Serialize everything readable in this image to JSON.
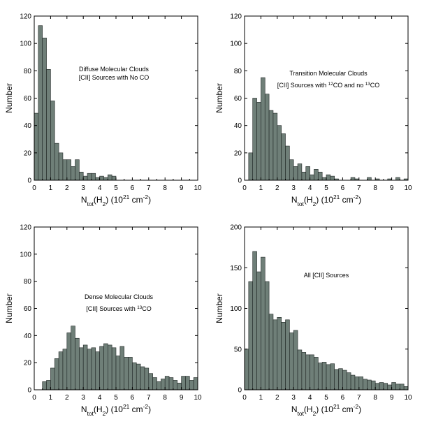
{
  "chart_data": [
    {
      "type": "bar",
      "annotation_lines": [
        [
          {
            "t": "Diffuse Molecular Clouds"
          }
        ],
        [
          {
            "t": "[CII] Sources with No CO"
          }
        ]
      ],
      "ylabel": "Number",
      "xlabel_parts": [
        {
          "t": "N"
        },
        {
          "t": "tot",
          "s": "sub"
        },
        {
          "t": "(H"
        },
        {
          "t": "2",
          "s": "sub"
        },
        {
          "t": ") (10"
        },
        {
          "t": "21",
          "s": "sup"
        },
        {
          "t": " cm"
        },
        {
          "t": "-2",
          "s": "sup"
        },
        {
          "t": ")"
        }
      ],
      "xlim": [
        0,
        10
      ],
      "ylim": [
        0,
        120
      ],
      "xticks": [
        0,
        1,
        2,
        3,
        4,
        5,
        6,
        7,
        8,
        9,
        10
      ],
      "yticks": [
        0,
        20,
        40,
        60,
        80,
        100,
        120
      ],
      "bin_width": 0.25,
      "values": [
        49,
        113,
        104,
        81,
        58,
        27,
        20,
        15,
        15,
        10,
        15,
        6,
        3,
        5,
        5,
        2,
        3,
        2,
        4,
        3,
        0,
        0,
        0,
        0,
        0,
        0,
        0,
        0,
        0,
        0,
        0,
        0,
        0,
        0,
        0,
        0,
        0,
        0,
        0,
        0
      ]
    },
    {
      "type": "bar",
      "annotation_lines": [
        [
          {
            "t": "Transition Molecular Clouds"
          }
        ],
        [
          {
            "t": "[CII] Sources with "
          },
          {
            "t": "12",
            "s": "sup"
          },
          {
            "t": "CO and no "
          },
          {
            "t": "13",
            "s": "sup"
          },
          {
            "t": "CO"
          }
        ]
      ],
      "ylabel": "Number",
      "xlabel_parts": [
        {
          "t": "N"
        },
        {
          "t": "tot",
          "s": "sub"
        },
        {
          "t": "(H"
        },
        {
          "t": "2",
          "s": "sub"
        },
        {
          "t": ") (10"
        },
        {
          "t": "21",
          "s": "sup"
        },
        {
          "t": " cm"
        },
        {
          "t": "-2",
          "s": "sup"
        },
        {
          "t": ")"
        }
      ],
      "xlim": [
        0,
        10
      ],
      "ylim": [
        0,
        120
      ],
      "xticks": [
        0,
        1,
        2,
        3,
        4,
        5,
        6,
        7,
        8,
        9,
        10
      ],
      "yticks": [
        0,
        20,
        40,
        60,
        80,
        100,
        120
      ],
      "bin_width": 0.25,
      "values": [
        0,
        20,
        60,
        57,
        75,
        63,
        51,
        49,
        40,
        34,
        25,
        15,
        10,
        12,
        6,
        10,
        4,
        8,
        6,
        2,
        4,
        3,
        1,
        0,
        0,
        0,
        2,
        1,
        0,
        0,
        2,
        0,
        1,
        0,
        0,
        1,
        0,
        2,
        0,
        1
      ]
    },
    {
      "type": "bar",
      "annotation_lines": [
        [
          {
            "t": "Dense Molecular Clouds"
          }
        ],
        [
          {
            "t": "[CII] Sources with "
          },
          {
            "t": "13",
            "s": "sup"
          },
          {
            "t": "CO"
          }
        ]
      ],
      "ylabel": "Number",
      "xlabel_parts": [
        {
          "t": "N"
        },
        {
          "t": "tot",
          "s": "sub"
        },
        {
          "t": "(H"
        },
        {
          "t": "2",
          "s": "sub"
        },
        {
          "t": ") (10"
        },
        {
          "t": "21",
          "s": "sup"
        },
        {
          "t": " cm"
        },
        {
          "t": "-2",
          "s": "sup"
        },
        {
          "t": ")"
        }
      ],
      "xlim": [
        0,
        10
      ],
      "ylim": [
        0,
        120
      ],
      "xticks": [
        0,
        1,
        2,
        3,
        4,
        5,
        6,
        7,
        8,
        9,
        10
      ],
      "yticks": [
        0,
        20,
        40,
        60,
        80,
        100,
        120
      ],
      "bin_width": 0.25,
      "values": [
        0,
        0,
        6,
        7,
        16,
        23,
        28,
        30,
        42,
        47,
        38,
        31,
        33,
        30,
        31,
        28,
        32,
        34,
        33,
        31,
        25,
        32,
        24,
        24,
        20,
        19,
        17,
        16,
        12,
        9,
        6,
        8,
        10,
        9,
        7,
        5,
        10,
        10,
        7,
        9
      ]
    },
    {
      "type": "bar",
      "annotation_lines": [
        [
          {
            "t": "All [CII] Sources"
          }
        ]
      ],
      "ylabel": "Number",
      "xlabel_parts": [
        {
          "t": "N"
        },
        {
          "t": "tot",
          "s": "sub"
        },
        {
          "t": "(H"
        },
        {
          "t": "2",
          "s": "sub"
        },
        {
          "t": ") (10"
        },
        {
          "t": "21",
          "s": "sup"
        },
        {
          "t": " cm"
        },
        {
          "t": "-2",
          "s": "sup"
        },
        {
          "t": ")"
        }
      ],
      "xlim": [
        0,
        10
      ],
      "ylim": [
        0,
        200
      ],
      "xticks": [
        0,
        1,
        2,
        3,
        4,
        5,
        6,
        7,
        8,
        9,
        10
      ],
      "yticks": [
        0,
        50,
        100,
        150,
        200
      ],
      "bin_width": 0.25,
      "values": [
        50,
        133,
        170,
        145,
        163,
        133,
        93,
        86,
        89,
        83,
        86,
        70,
        73,
        49,
        46,
        43,
        43,
        40,
        33,
        34,
        31,
        32,
        25,
        26,
        24,
        21,
        18,
        16,
        16,
        13,
        12,
        11,
        8,
        9,
        8,
        6,
        9,
        7,
        7,
        4
      ]
    }
  ]
}
